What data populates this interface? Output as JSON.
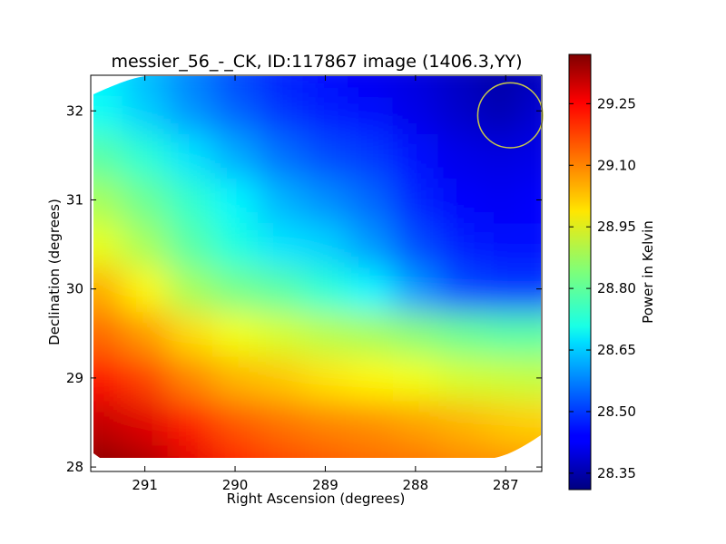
{
  "chart_data": {
    "type": "heatmap",
    "title": "messier_56_-_CK, ID:117867 image (1406.3,YY)",
    "xlabel": "Right Ascension (degrees)",
    "ylabel": "Declination (degrees)",
    "xlim": [
      291.6,
      286.6
    ],
    "ylim": [
      27.95,
      32.4
    ],
    "x_reversed": true,
    "x_ticks": [
      291,
      290,
      289,
      288,
      287
    ],
    "x_tick_labels": [
      "291",
      "290",
      "289",
      "288",
      "287"
    ],
    "y_ticks": [
      28,
      29,
      30,
      31,
      32
    ],
    "y_tick_labels": [
      "28",
      "29",
      "30",
      "31",
      "32"
    ],
    "colorbar": {
      "label": "Power in Kelvin",
      "min": 28.31,
      "max": 29.37,
      "ticks": [
        28.35,
        28.5,
        28.65,
        28.8,
        28.95,
        29.1,
        29.25
      ],
      "tick_labels": [
        "28.35",
        "28.50",
        "28.65",
        "28.80",
        "28.95",
        "29.10",
        "29.25"
      ],
      "colormap": "jet"
    },
    "grid": false,
    "marker": {
      "shape": "circle",
      "center_ra": 286.95,
      "center_dec": 31.95,
      "radius_deg": 0.36,
      "color": "#c8c84b"
    },
    "columns_ra": [
      291.5,
      291.0,
      290.5,
      290.0,
      289.5,
      289.0,
      288.5,
      288.0,
      287.5,
      287.0,
      286.7
    ],
    "rows_dec": [
      28.0,
      28.5,
      29.0,
      29.5,
      30.0,
      30.5,
      31.0,
      31.5,
      32.0,
      32.3
    ],
    "values": [
      [
        29.36,
        29.33,
        29.27,
        29.21,
        29.17,
        29.15,
        29.13,
        29.12,
        29.1,
        29.09,
        29.08
      ],
      [
        29.3,
        29.27,
        29.21,
        29.15,
        29.12,
        29.1,
        29.09,
        29.07,
        29.05,
        29.03,
        29.02
      ],
      [
        29.22,
        29.17,
        29.1,
        29.05,
        29.03,
        29.0,
        28.98,
        28.96,
        28.93,
        28.92,
        28.91
      ],
      [
        29.13,
        29.08,
        29.01,
        28.96,
        28.93,
        28.9,
        28.88,
        28.85,
        28.82,
        28.8,
        28.8
      ],
      [
        29.06,
        28.98,
        28.88,
        28.83,
        28.8,
        28.75,
        28.7,
        28.6,
        28.52,
        28.5,
        28.5
      ],
      [
        28.95,
        28.88,
        28.8,
        28.74,
        28.68,
        28.66,
        28.6,
        28.52,
        28.47,
        28.45,
        28.45
      ],
      [
        28.88,
        28.82,
        28.76,
        28.7,
        28.63,
        28.59,
        28.55,
        28.48,
        28.44,
        28.43,
        28.44
      ],
      [
        28.8,
        28.75,
        28.68,
        28.62,
        28.56,
        28.52,
        28.5,
        28.46,
        28.42,
        28.41,
        28.42
      ],
      [
        28.72,
        28.66,
        28.6,
        28.55,
        28.5,
        28.47,
        28.45,
        28.42,
        28.39,
        28.36,
        28.4
      ],
      [
        28.7,
        28.64,
        28.58,
        28.52,
        28.48,
        28.45,
        28.43,
        28.41,
        28.38,
        28.35,
        28.38
      ]
    ]
  }
}
